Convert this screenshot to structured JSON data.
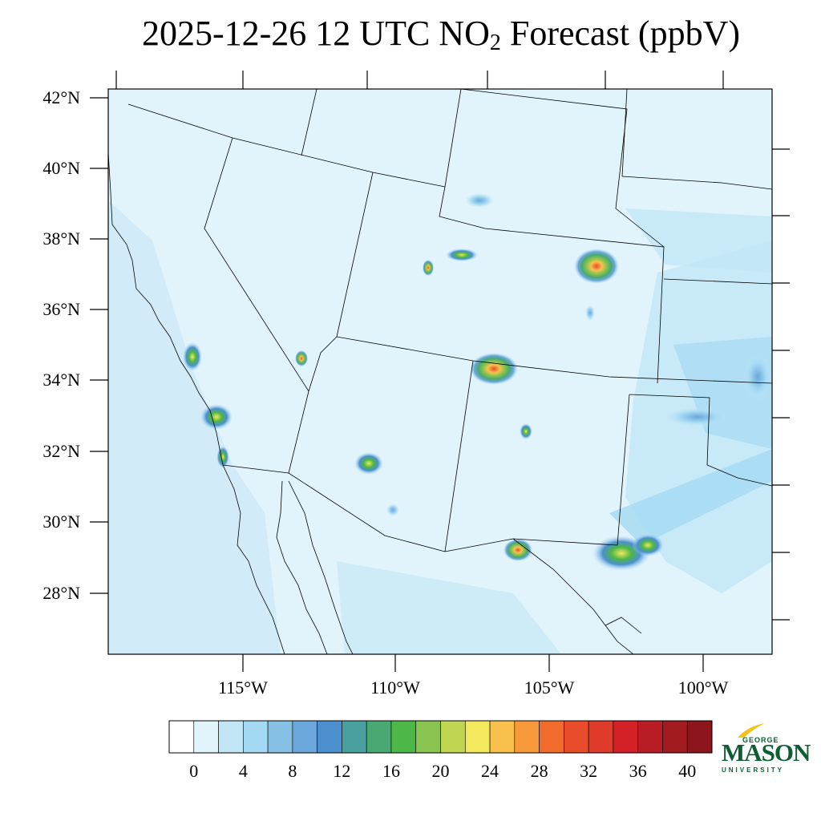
{
  "title": {
    "prefix": "2025-12-26 12 UTC NO",
    "subscript": "2",
    "suffix": " Forecast (ppbV)"
  },
  "map": {
    "lat_labels": [
      "42°N",
      "40°N",
      "38°N",
      "36°N",
      "34°N",
      "32°N",
      "30°N",
      "28°N"
    ],
    "lon_labels": [
      "115°W",
      "110°W",
      "105°W",
      "100°W"
    ],
    "background_color": "#e1f3fb",
    "hotspots": [
      {
        "name": "los-angeles",
        "peak": 22
      },
      {
        "name": "san-diego",
        "peak": 18
      },
      {
        "name": "phoenix",
        "peak": 30
      },
      {
        "name": "tucson",
        "peak": 18
      },
      {
        "name": "las-vegas",
        "peak": 26
      },
      {
        "name": "salt-lake-city",
        "peak": 20
      },
      {
        "name": "denver",
        "peak": 32
      },
      {
        "name": "albuquerque",
        "peak": 34
      },
      {
        "name": "el-paso",
        "peak": 26
      },
      {
        "name": "wyoming-plume",
        "peak": 22
      },
      {
        "name": "colorado-west",
        "peak": 24
      },
      {
        "name": "permian-basin",
        "peak": 24
      }
    ]
  },
  "colorbar": {
    "colors": [
      "#ffffff",
      "#e1f3fb",
      "#c2e6f6",
      "#a4d9f3",
      "#86c0e4",
      "#6aa8dc",
      "#4b8fcf",
      "#4a9f9f",
      "#4aa872",
      "#4db748",
      "#88c44f",
      "#c0d652",
      "#f4e85c",
      "#f8c04d",
      "#f79a3b",
      "#f16b2c",
      "#e94c2a",
      "#df3a2a",
      "#d42128",
      "#b81c24",
      "#a11b21",
      "#8c161b"
    ],
    "tick_labels": [
      "0",
      "4",
      "8",
      "12",
      "16",
      "20",
      "24",
      "28",
      "32",
      "36",
      "40"
    ]
  },
  "logo": {
    "top": "GEORGE",
    "main": "MASON",
    "bottom": "UNIVERSITY"
  }
}
